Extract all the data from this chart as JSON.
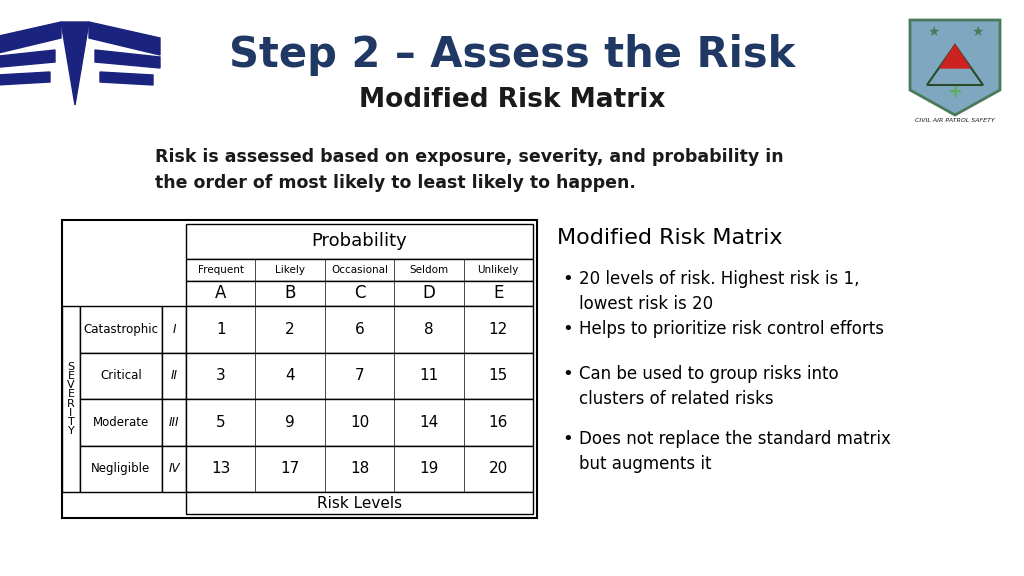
{
  "title": "Step 2 – Assess the Risk",
  "subtitle": "Modified Risk Matrix",
  "body_text": "Risk is assessed based on exposure, severity, and probability in\nthe order of most likely to least likely to happen.",
  "bg_color": "#ffffff",
  "title_color": "#1f3864",
  "subtitle_color": "#1a1a1a",
  "body_color": "#1a1a1a",
  "table_prob_header": "Probability",
  "table_prob_cols": [
    "Frequent",
    "Likely",
    "Occasional",
    "Seldom",
    "Unlikely"
  ],
  "table_prob_letters": [
    "A",
    "B",
    "C",
    "D",
    "E"
  ],
  "table_sev_header": "S\nE\nV\nE\nR\nI\nT\nY",
  "table_sev_rows": [
    "Catastrophic",
    "Critical",
    "Moderate",
    "Negligible"
  ],
  "table_sev_roman": [
    "I",
    "II",
    "III",
    "IV"
  ],
  "table_values": [
    [
      1,
      2,
      6,
      8,
      12
    ],
    [
      3,
      4,
      7,
      11,
      15
    ],
    [
      5,
      9,
      10,
      14,
      16
    ],
    [
      13,
      17,
      18,
      19,
      20
    ]
  ],
  "table_footer": "Risk Levels",
  "right_title": "Modified Risk Matrix",
  "bullet_points": [
    "20 levels of risk. Highest risk is 1,\nlowest risk is 20",
    "Helps to prioritize risk control efforts",
    "Can be used to group risks into\nclusters of related risks",
    "Does not replace the standard matrix\nbut augments it"
  ],
  "wing_color": "#1a237e",
  "shield_color": "#7fa8c0"
}
